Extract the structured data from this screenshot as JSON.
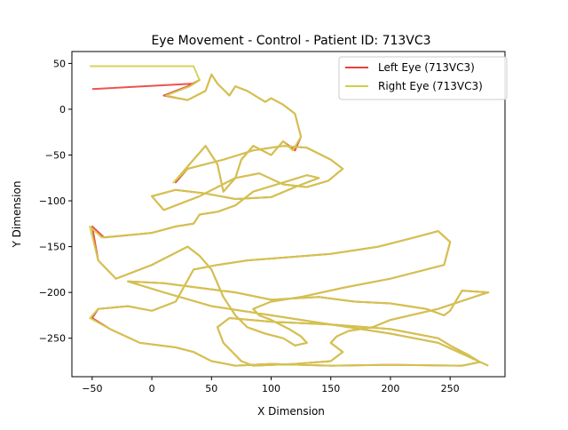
{
  "chart_data": {
    "type": "line",
    "title": "Eye Movement - Control - Patient ID: 713VC3",
    "xlabel": "X Dimension",
    "ylabel": "Y Dimension",
    "xlim": [
      -67,
      296
    ],
    "ylim": [
      -292,
      63
    ],
    "xticks": [
      -50,
      0,
      50,
      100,
      150,
      200,
      250
    ],
    "yticks": [
      50,
      0,
      -50,
      -100,
      -150,
      -200,
      -250
    ],
    "xtick_labels": [
      "−50",
      "0",
      "50",
      "100",
      "150",
      "200",
      "250"
    ],
    "ytick_labels": [
      "50",
      "0",
      "−50",
      "−100",
      "−150",
      "−200",
      "−250"
    ],
    "grid": false,
    "legend_position": "top-right",
    "series": [
      {
        "name": "Left Eye (713VC3)",
        "color": "#e8413c",
        "x": [
          -50,
          35,
          40,
          30,
          10,
          30,
          45,
          50,
          55,
          65,
          70,
          80,
          95,
          100,
          110,
          120,
          125,
          120,
          110,
          100,
          85,
          75,
          70,
          60,
          55,
          45,
          35,
          25,
          20,
          30,
          45,
          60,
          85,
          110,
          130,
          150,
          160,
          148,
          130,
          110,
          90,
          70,
          55,
          40,
          30,
          10,
          0,
          20,
          45,
          70,
          100,
          120,
          140,
          130,
          110,
          85,
          70,
          55,
          40,
          35,
          20,
          0,
          -40,
          -50,
          -45,
          -30,
          0,
          30,
          40,
          50,
          55,
          60,
          70,
          80,
          95,
          110,
          120,
          130,
          125,
          115,
          100,
          90,
          85,
          100,
          125,
          160,
          200,
          245,
          250,
          240,
          220,
          190,
          150,
          110,
          80,
          55,
          35,
          20,
          0,
          -20,
          -45,
          -50,
          -35,
          -10,
          20,
          35,
          50,
          70,
          100,
          150,
          200,
          260,
          275,
          265,
          250,
          240,
          220,
          200,
          150,
          100,
          65,
          55,
          60,
          75,
          85,
          120,
          150,
          160,
          150,
          155,
          165,
          185,
          200,
          240,
          270,
          282,
          260,
          250,
          245,
          230,
          200,
          170,
          140,
          100,
          70,
          40,
          10,
          -20,
          10,
          50,
          100,
          150,
          200,
          240,
          282
        ],
        "y": [
          22,
          28,
          32,
          25,
          15,
          10,
          20,
          38,
          28,
          15,
          25,
          20,
          8,
          12,
          5,
          -5,
          -30,
          -45,
          -35,
          -50,
          -40,
          -55,
          -75,
          -90,
          -60,
          -40,
          -55,
          -70,
          -80,
          -65,
          -60,
          -55,
          -45,
          -40,
          -42,
          -55,
          -65,
          -78,
          -85,
          -82,
          -70,
          -75,
          -85,
          -95,
          -100,
          -110,
          -95,
          -88,
          -92,
          -98,
          -96,
          -85,
          -75,
          -72,
          -80,
          -90,
          -105,
          -112,
          -115,
          -125,
          -128,
          -135,
          -140,
          -128,
          -165,
          -185,
          -170,
          -150,
          -160,
          -175,
          -190,
          -205,
          -225,
          -238,
          -245,
          -250,
          -258,
          -255,
          -248,
          -240,
          -230,
          -225,
          -218,
          -210,
          -205,
          -195,
          -185,
          -170,
          -145,
          -133,
          -140,
          -150,
          -158,
          -162,
          -165,
          -170,
          -175,
          -210,
          -220,
          -215,
          -218,
          -228,
          -240,
          -255,
          -260,
          -265,
          -275,
          -280,
          -278,
          -280,
          -279,
          -280,
          -276,
          -268,
          -258,
          -250,
          -245,
          -240,
          -235,
          -232,
          -228,
          -238,
          -255,
          -275,
          -280,
          -278,
          -275,
          -265,
          -255,
          -248,
          -242,
          -238,
          -230,
          -218,
          -205,
          -200,
          -198,
          -220,
          -225,
          -218,
          -212,
          -210,
          -205,
          -208,
          -200,
          -195,
          -190,
          -188,
          -200,
          -215,
          -225,
          -235,
          -245,
          -255,
          -280
        ]
      },
      {
        "name": "Right Eye (713VC3)",
        "color": "#cfcf4a",
        "x": [
          -52,
          35,
          40,
          32,
          12,
          30,
          45,
          50,
          55,
          65,
          70,
          80,
          95,
          100,
          110,
          120,
          125,
          118,
          110,
          100,
          85,
          75,
          70,
          60,
          55,
          45,
          35,
          25,
          18,
          30,
          45,
          60,
          85,
          110,
          130,
          150,
          160,
          148,
          130,
          110,
          90,
          70,
          55,
          40,
          30,
          10,
          0,
          20,
          45,
          70,
          100,
          120,
          140,
          130,
          110,
          85,
          70,
          55,
          40,
          35,
          20,
          0,
          -42,
          -52,
          -45,
          -30,
          0,
          30,
          40,
          50,
          55,
          60,
          70,
          80,
          95,
          110,
          120,
          130,
          125,
          115,
          100,
          90,
          85,
          100,
          125,
          160,
          200,
          245,
          250,
          240,
          220,
          190,
          150,
          110,
          80,
          55,
          35,
          20,
          0,
          -20,
          -45,
          -52,
          -35,
          -10,
          20,
          35,
          50,
          70,
          100,
          150,
          200,
          260,
          275,
          265,
          250,
          240,
          220,
          200,
          150,
          100,
          65,
          55,
          60,
          75,
          85,
          120,
          150,
          160,
          150,
          155,
          165,
          185,
          200,
          240,
          270,
          282,
          260,
          250,
          245,
          230,
          200,
          170,
          140,
          100,
          70,
          40,
          10,
          -20,
          10,
          50,
          100,
          150,
          200,
          240,
          282
        ],
        "y": [
          47,
          47,
          32,
          25,
          15,
          10,
          20,
          38,
          28,
          15,
          25,
          20,
          8,
          12,
          5,
          -5,
          -30,
          -45,
          -35,
          -50,
          -40,
          -55,
          -75,
          -90,
          -60,
          -40,
          -55,
          -70,
          -80,
          -65,
          -60,
          -55,
          -45,
          -40,
          -42,
          -55,
          -65,
          -78,
          -85,
          -82,
          -70,
          -75,
          -85,
          -95,
          -100,
          -110,
          -95,
          -88,
          -92,
          -98,
          -96,
          -85,
          -75,
          -72,
          -80,
          -90,
          -105,
          -112,
          -115,
          -125,
          -128,
          -135,
          -140,
          -128,
          -165,
          -185,
          -170,
          -150,
          -160,
          -175,
          -190,
          -205,
          -225,
          -238,
          -245,
          -250,
          -258,
          -255,
          -248,
          -240,
          -230,
          -225,
          -218,
          -210,
          -205,
          -195,
          -185,
          -170,
          -145,
          -133,
          -140,
          -150,
          -158,
          -162,
          -165,
          -170,
          -175,
          -210,
          -220,
          -215,
          -218,
          -228,
          -240,
          -255,
          -260,
          -265,
          -275,
          -280,
          -278,
          -280,
          -279,
          -280,
          -276,
          -268,
          -258,
          -250,
          -245,
          -240,
          -235,
          -232,
          -228,
          -238,
          -255,
          -275,
          -280,
          -278,
          -275,
          -265,
          -255,
          -248,
          -242,
          -238,
          -230,
          -218,
          -205,
          -200,
          -198,
          -220,
          -225,
          -218,
          -212,
          -210,
          -205,
          -208,
          -200,
          -195,
          -190,
          -188,
          -200,
          -215,
          -225,
          -235,
          -245,
          -255,
          -280
        ]
      }
    ]
  }
}
